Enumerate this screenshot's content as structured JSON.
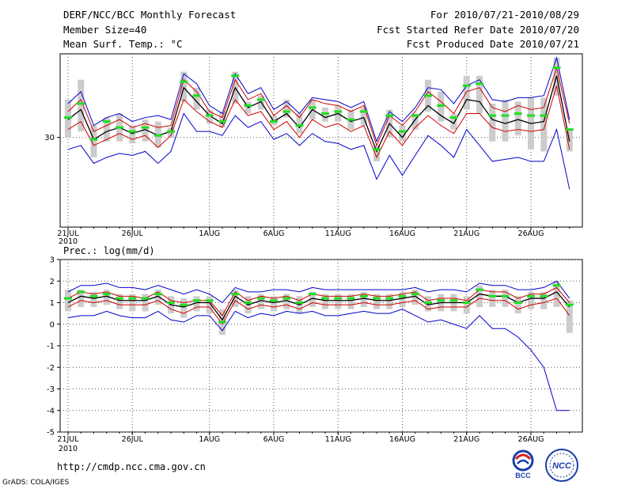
{
  "header": {
    "title": "DERF/NCC/BCC Monthly Forecast",
    "member_size": "Member Size=40",
    "var_label": "Mean Surf. Temp.: °C",
    "fcst_for": "For 2010/07/21-2010/08/29",
    "fcst_start": "Fcst Started Refer Date 2010/07/20",
    "fcst_produced": "Fcst Produced Date 2010/07/21"
  },
  "footer": {
    "url": "http://cmdp.ncc.cma.gov.cn",
    "grads": "GrADS: COLA/IGES",
    "logo_bcc": "BCC",
    "logo_ncc": "NCC"
  },
  "colors": {
    "ensemble_mean": "#000000",
    "spread": "#d00000",
    "envelope": "#0000cc",
    "box": "#cccccc",
    "median_mark": "#22dd22",
    "grid": "#555555"
  },
  "chart_data": [
    {
      "type": "line",
      "title": "Mean Surf. Temp.: °C",
      "xlabel": "",
      "ylabel": "",
      "x_ticks": [
        "21JUL",
        "26JUL",
        "1AUG",
        "6AUG",
        "11AUG",
        "16AUG",
        "21AUG",
        "26AUG"
      ],
      "x_tick_days": [
        1,
        6,
        12,
        17,
        22,
        27,
        32,
        37
      ],
      "x_sub_label": "2010",
      "y_ticks": [
        30
      ],
      "ylim": [
        25.5,
        34.2
      ],
      "days": 40,
      "series": [
        {
          "name": "maximum",
          "values": [
            31.7,
            32.3,
            30.6,
            31.0,
            31.2,
            30.8,
            31.0,
            31.1,
            30.9,
            33.2,
            32.7,
            31.6,
            31.2,
            33.2,
            32.2,
            32.5,
            31.4,
            31.8,
            31.2,
            32.0,
            31.9,
            31.8,
            31.5,
            31.8,
            29.8,
            31.3,
            30.8,
            31.5,
            32.5,
            32.4,
            31.7,
            32.6,
            32.9,
            31.9,
            31.8,
            32.0,
            32.0,
            32.1,
            34.0,
            30.9
          ]
        },
        {
          "name": "mean_plus",
          "values": [
            31.3,
            31.9,
            30.3,
            30.6,
            30.9,
            30.5,
            30.7,
            30.5,
            30.6,
            32.9,
            32.3,
            31.3,
            31.0,
            32.9,
            31.9,
            32.2,
            31.1,
            31.6,
            31.0,
            31.9,
            31.7,
            31.6,
            31.3,
            31.6,
            29.6,
            31.1,
            30.6,
            31.3,
            32.3,
            31.8,
            31.2,
            32.3,
            32.5,
            31.5,
            31.3,
            31.6,
            31.4,
            31.5,
            33.5,
            30.7
          ]
        },
        {
          "name": "mean",
          "values": [
            30.9,
            31.4,
            29.9,
            30.3,
            30.5,
            30.2,
            30.4,
            30.1,
            30.3,
            32.5,
            31.8,
            31.1,
            30.7,
            32.5,
            31.5,
            31.8,
            30.8,
            31.2,
            30.5,
            31.4,
            31.0,
            31.2,
            30.8,
            31.0,
            29.3,
            30.7,
            30.0,
            30.9,
            31.6,
            31.1,
            30.7,
            31.9,
            31.8,
            30.9,
            30.7,
            30.9,
            30.7,
            30.8,
            33.1,
            29.8
          ]
        },
        {
          "name": "mean_minus",
          "values": [
            30.4,
            30.8,
            29.6,
            29.9,
            30.2,
            29.9,
            30.1,
            29.5,
            30.1,
            31.9,
            31.3,
            30.8,
            30.5,
            31.9,
            31.1,
            31.3,
            30.4,
            30.8,
            30.0,
            30.9,
            30.5,
            30.7,
            30.3,
            30.6,
            29.0,
            30.3,
            29.6,
            30.5,
            31.1,
            30.6,
            30.2,
            31.2,
            31.2,
            30.5,
            30.3,
            30.4,
            30.3,
            30.4,
            32.6,
            29.4
          ]
        },
        {
          "name": "minimum",
          "values": [
            29.4,
            29.6,
            28.7,
            29.0,
            29.2,
            29.1,
            29.3,
            28.7,
            29.3,
            31.2,
            30.3,
            30.3,
            30.1,
            31.1,
            30.5,
            30.8,
            29.9,
            30.2,
            29.6,
            30.2,
            29.8,
            29.7,
            29.4,
            29.6,
            27.9,
            29.1,
            28.1,
            29.1,
            30.1,
            29.6,
            29.0,
            30.4,
            29.6,
            28.8,
            28.9,
            29.0,
            28.8,
            28.8,
            30.4,
            27.4
          ]
        }
      ],
      "box_low": [
        30.0,
        30.3,
        29.0,
        29.8,
        29.8,
        29.7,
        29.8,
        29.5,
        30.0,
        31.8,
        31.4,
        30.7,
        30.5,
        31.7,
        31.2,
        31.4,
        30.6,
        31.0,
        30.2,
        30.9,
        30.8,
        30.8,
        30.4,
        30.6,
        28.8,
        30.0,
        29.8,
        30.4,
        31.3,
        30.8,
        30.4,
        31.4,
        31.2,
        29.8,
        29.8,
        30.1,
        29.4,
        29.3,
        32.1,
        29.3
      ],
      "box_high": [
        31.9,
        32.9,
        30.6,
        31.0,
        31.2,
        30.6,
        30.9,
        30.8,
        30.5,
        33.3,
        32.5,
        31.4,
        31.3,
        33.3,
        31.8,
        32.1,
        31.1,
        31.9,
        31.2,
        31.9,
        31.5,
        31.6,
        31.4,
        31.5,
        29.6,
        31.4,
        30.6,
        31.2,
        32.9,
        32.3,
        31.2,
        33.1,
        33.1,
        31.7,
        31.9,
        31.8,
        32.0,
        32.0,
        34.0,
        30.4
      ],
      "median": [
        31.0,
        31.7,
        29.9,
        30.8,
        30.5,
        30.3,
        30.5,
        30.1,
        30.3,
        32.8,
        32.1,
        31.1,
        30.8,
        33.1,
        31.6,
        31.9,
        30.8,
        31.3,
        30.6,
        31.5,
        31.2,
        31.3,
        30.9,
        31.3,
        29.4,
        31.1,
        30.3,
        31.1,
        32.1,
        31.6,
        31.0,
        32.6,
        32.7,
        31.1,
        31.1,
        31.2,
        31.1,
        31.1,
        33.5,
        30.4
      ]
    },
    {
      "type": "line",
      "title": "Prec.: log(mm/d)",
      "xlabel": "",
      "ylabel": "",
      "x_ticks": [
        "21JUL",
        "26JUL",
        "1AUG",
        "6AUG",
        "11AUG",
        "16AUG",
        "21AUG",
        "26AUG"
      ],
      "x_tick_days": [
        1,
        6,
        12,
        17,
        22,
        27,
        32,
        37
      ],
      "x_sub_label": "2010",
      "y_ticks": [
        "3",
        "2",
        "1",
        "0",
        "-1",
        "-2",
        "-3",
        "-4",
        "-5"
      ],
      "ylim": [
        -5,
        3
      ],
      "days": 40,
      "series": [
        {
          "name": "maximum",
          "values": [
            1.5,
            1.8,
            1.8,
            1.9,
            1.7,
            1.7,
            1.6,
            1.8,
            1.6,
            1.4,
            1.6,
            1.4,
            1.0,
            1.7,
            1.5,
            1.5,
            1.6,
            1.6,
            1.5,
            1.7,
            1.6,
            1.6,
            1.6,
            1.6,
            1.6,
            1.6,
            1.6,
            1.7,
            1.5,
            1.6,
            1.6,
            1.5,
            1.9,
            1.8,
            1.8,
            1.6,
            1.6,
            1.7,
            2.0,
            1.2
          ]
        },
        {
          "name": "mean_plus",
          "values": [
            1.2,
            1.5,
            1.4,
            1.5,
            1.3,
            1.3,
            1.2,
            1.5,
            1.1,
            1.0,
            1.1,
            1.1,
            0.4,
            1.5,
            1.1,
            1.3,
            1.2,
            1.3,
            1.1,
            1.4,
            1.3,
            1.3,
            1.3,
            1.4,
            1.3,
            1.3,
            1.4,
            1.5,
            1.1,
            1.2,
            1.2,
            1.1,
            1.6,
            1.5,
            1.5,
            1.2,
            1.4,
            1.4,
            1.7,
            1.0
          ]
        },
        {
          "name": "mean",
          "values": [
            1.0,
            1.3,
            1.2,
            1.3,
            1.1,
            1.1,
            1.1,
            1.3,
            0.9,
            0.8,
            1.0,
            1.0,
            0.2,
            1.3,
            0.9,
            1.1,
            1.0,
            1.1,
            0.9,
            1.2,
            1.1,
            1.1,
            1.1,
            1.2,
            1.1,
            1.1,
            1.2,
            1.3,
            0.9,
            1.0,
            1.0,
            1.0,
            1.4,
            1.3,
            1.3,
            1.0,
            1.2,
            1.2,
            1.5,
            0.8
          ]
        },
        {
          "name": "mean_minus",
          "values": [
            0.8,
            1.1,
            1.0,
            1.1,
            0.9,
            0.9,
            0.9,
            1.1,
            0.7,
            0.5,
            0.8,
            0.8,
            0.0,
            1.1,
            0.7,
            0.9,
            0.8,
            0.9,
            0.7,
            1.0,
            0.9,
            0.9,
            0.9,
            1.0,
            0.9,
            0.9,
            1.0,
            1.1,
            0.7,
            0.8,
            0.8,
            0.8,
            1.2,
            1.1,
            1.1,
            0.7,
            0.9,
            1.0,
            1.2,
            0.4
          ]
        },
        {
          "name": "minimum",
          "values": [
            0.3,
            0.4,
            0.4,
            0.6,
            0.4,
            0.3,
            0.3,
            0.6,
            0.2,
            0.1,
            0.4,
            0.4,
            -0.3,
            0.6,
            0.3,
            0.5,
            0.4,
            0.6,
            0.5,
            0.6,
            0.4,
            0.4,
            0.5,
            0.6,
            0.5,
            0.5,
            0.7,
            0.4,
            0.1,
            0.2,
            0.0,
            -0.2,
            0.4,
            -0.2,
            -0.2,
            -0.6,
            -1.2,
            -2.0,
            -4.0,
            -4.0
          ]
        }
      ],
      "box_low": [
        0.6,
        0.8,
        0.8,
        0.9,
        0.7,
        0.6,
        0.6,
        0.9,
        0.5,
        0.3,
        0.6,
        0.5,
        -0.5,
        0.8,
        0.5,
        0.7,
        0.6,
        0.7,
        0.5,
        0.8,
        0.7,
        0.7,
        0.7,
        0.8,
        0.7,
        0.7,
        0.8,
        0.9,
        0.6,
        0.6,
        0.6,
        0.5,
        0.8,
        0.8,
        0.8,
        0.5,
        0.7,
        0.7,
        0.8,
        -0.4
      ],
      "box_high": [
        1.6,
        1.6,
        1.5,
        1.6,
        1.4,
        1.4,
        1.4,
        1.6,
        1.3,
        1.2,
        1.3,
        1.3,
        0.7,
        1.6,
        1.3,
        1.4,
        1.3,
        1.4,
        1.3,
        1.5,
        1.4,
        1.4,
        1.4,
        1.5,
        1.4,
        1.4,
        1.5,
        1.6,
        1.3,
        1.4,
        1.4,
        1.3,
        1.8,
        1.6,
        1.6,
        1.3,
        1.5,
        1.5,
        2.0,
        1.1
      ],
      "median": [
        1.2,
        1.5,
        1.3,
        1.4,
        1.2,
        1.2,
        1.2,
        1.4,
        1.0,
        0.9,
        1.1,
        1.1,
        0.1,
        1.4,
        1.0,
        1.2,
        1.1,
        1.2,
        1.0,
        1.4,
        1.2,
        1.2,
        1.2,
        1.3,
        1.2,
        1.2,
        1.3,
        1.4,
        1.0,
        1.1,
        1.1,
        1.0,
        1.6,
        1.3,
        1.3,
        1.0,
        1.3,
        1.3,
        1.8,
        0.9
      ]
    }
  ]
}
